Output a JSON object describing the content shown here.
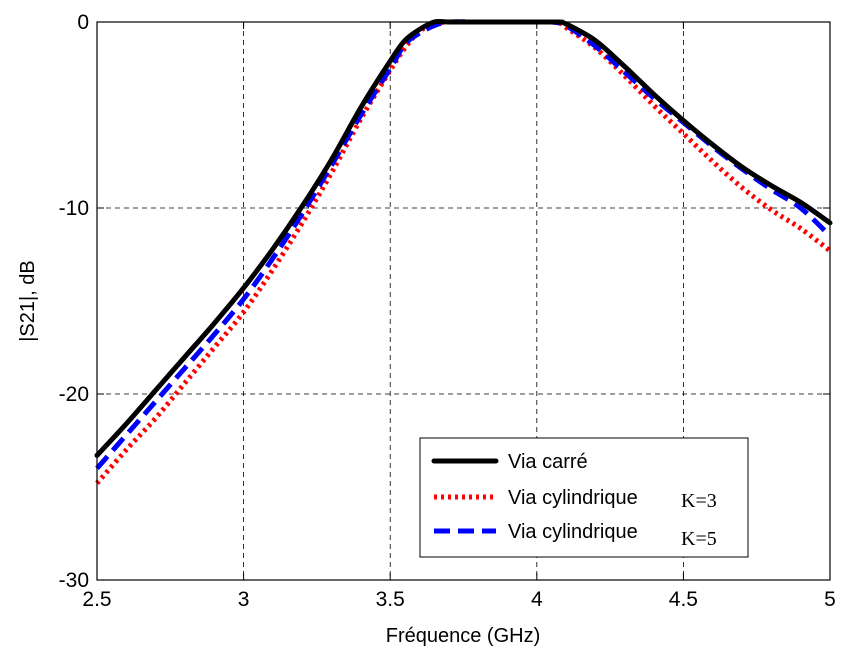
{
  "chart_data": {
    "type": "line",
    "xlabel": "Fréquence (GHz)",
    "ylabel": "|S21|, dB",
    "xlim": [
      2.5,
      5
    ],
    "ylim": [
      -30,
      0
    ],
    "xticks": [
      2.5,
      3,
      3.5,
      4,
      4.5,
      5
    ],
    "xtick_labels": [
      "2.5",
      "3",
      "3.5",
      "4",
      "4.5",
      "5"
    ],
    "yticks": [
      -30,
      -20,
      -10,
      0
    ],
    "ytick_labels": [
      "-30",
      "-20",
      "-10",
      "0"
    ],
    "grid": true,
    "legend_position": "bottom-right",
    "series": [
      {
        "name": "Via carré",
        "suffix": "",
        "color": "#000000",
        "style": "solid",
        "points": [
          [
            2.5,
            -23.3
          ],
          [
            2.6,
            -21.6
          ],
          [
            2.7,
            -19.8
          ],
          [
            2.8,
            -18.0
          ],
          [
            2.9,
            -16.2
          ],
          [
            3.0,
            -14.3
          ],
          [
            3.1,
            -12.2
          ],
          [
            3.2,
            -9.9
          ],
          [
            3.3,
            -7.4
          ],
          [
            3.4,
            -4.6
          ],
          [
            3.5,
            -2.1
          ],
          [
            3.55,
            -1.0
          ],
          [
            3.6,
            -0.4
          ],
          [
            3.65,
            0
          ],
          [
            3.7,
            0
          ],
          [
            3.8,
            0
          ],
          [
            3.9,
            0
          ],
          [
            4.0,
            0
          ],
          [
            4.08,
            0
          ],
          [
            4.1,
            -0.1
          ],
          [
            4.2,
            -1.0
          ],
          [
            4.3,
            -2.4
          ],
          [
            4.4,
            -3.9
          ],
          [
            4.5,
            -5.3
          ],
          [
            4.6,
            -6.6
          ],
          [
            4.7,
            -7.8
          ],
          [
            4.8,
            -8.8
          ],
          [
            4.9,
            -9.7
          ],
          [
            5.0,
            -10.8
          ]
        ]
      },
      {
        "name": "Via cylindrique",
        "suffix": "K=3",
        "color": "#ff0000",
        "style": "dotted",
        "points": [
          [
            2.5,
            -24.8
          ],
          [
            2.6,
            -23.0
          ],
          [
            2.7,
            -21.3
          ],
          [
            2.8,
            -19.4
          ],
          [
            2.9,
            -17.5
          ],
          [
            3.0,
            -15.6
          ],
          [
            3.1,
            -13.3
          ],
          [
            3.2,
            -10.8
          ],
          [
            3.3,
            -8.1
          ],
          [
            3.4,
            -5.2
          ],
          [
            3.5,
            -2.6
          ],
          [
            3.55,
            -1.4
          ],
          [
            3.6,
            -0.5
          ],
          [
            3.65,
            -0.1
          ],
          [
            3.7,
            0
          ],
          [
            3.8,
            0
          ],
          [
            3.9,
            0
          ],
          [
            4.0,
            0
          ],
          [
            4.07,
            0
          ],
          [
            4.1,
            -0.3
          ],
          [
            4.2,
            -1.4
          ],
          [
            4.3,
            -2.9
          ],
          [
            4.4,
            -4.5
          ],
          [
            4.5,
            -6.0
          ],
          [
            4.6,
            -7.5
          ],
          [
            4.7,
            -8.9
          ],
          [
            4.8,
            -10.1
          ],
          [
            4.9,
            -11.1
          ],
          [
            5.0,
            -12.3
          ]
        ]
      },
      {
        "name": "Via cylindrique",
        "suffix": "K=5",
        "color": "#0000ff",
        "style": "dashed",
        "points": [
          [
            2.5,
            -24.0
          ],
          [
            2.6,
            -22.2
          ],
          [
            2.7,
            -20.4
          ],
          [
            2.8,
            -18.6
          ],
          [
            2.9,
            -16.8
          ],
          [
            3.0,
            -14.9
          ],
          [
            3.1,
            -12.7
          ],
          [
            3.2,
            -10.3
          ],
          [
            3.3,
            -7.7
          ],
          [
            3.4,
            -5.0
          ],
          [
            3.5,
            -2.5
          ],
          [
            3.55,
            -1.2
          ],
          [
            3.6,
            -0.6
          ],
          [
            3.65,
            -0.2
          ],
          [
            3.7,
            0
          ],
          [
            3.8,
            0
          ],
          [
            3.9,
            0
          ],
          [
            4.0,
            0
          ],
          [
            4.05,
            0
          ],
          [
            4.1,
            -0.2
          ],
          [
            4.2,
            -1.3
          ],
          [
            4.3,
            -2.7
          ],
          [
            4.4,
            -4.1
          ],
          [
            4.5,
            -5.4
          ],
          [
            4.6,
            -6.7
          ],
          [
            4.7,
            -7.9
          ],
          [
            4.8,
            -9.0
          ],
          [
            4.9,
            -10.0
          ],
          [
            5.0,
            -11.5
          ]
        ]
      }
    ]
  }
}
